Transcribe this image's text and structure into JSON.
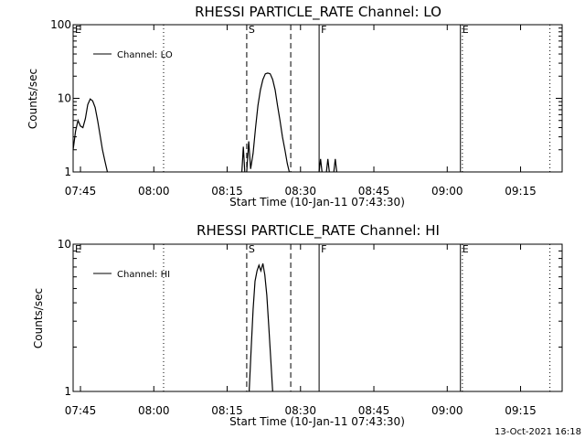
{
  "footer": {
    "timestamp": "13-Oct-2021 16:18"
  },
  "chart_data": [
    {
      "type": "line",
      "title": "RHESSI PARTICLE_RATE Channel: LO",
      "xlabel": "Start Time (10-Jan-11 07:43:30)",
      "ylabel": "Counts/sec",
      "yscale": "log",
      "xlim_minutes_from_start": [
        0,
        100
      ],
      "ylim": [
        1,
        100
      ],
      "x_tick_labels": [
        "07:45",
        "08:00",
        "08:15",
        "08:30",
        "08:45",
        "09:00",
        "09:15"
      ],
      "x_tick_minutes": [
        1.5,
        16.5,
        31.5,
        46.5,
        61.5,
        76.5,
        91.5
      ],
      "y_tick_labels": [
        "1",
        "10",
        "100"
      ],
      "y_tick_values": [
        1,
        10,
        100
      ],
      "legend": {
        "placement": "top-left",
        "entries": [
          "Channel: LO"
        ]
      },
      "markers": [
        {
          "label": "E",
          "minute": 0,
          "style": "dotted"
        },
        {
          "label": "",
          "minute": 18.5,
          "style": "dotted"
        },
        {
          "label": "S",
          "minute": 35.5,
          "style": "dashed"
        },
        {
          "label": "",
          "minute": 44.5,
          "style": "dashed"
        },
        {
          "label": "F",
          "minute": 50.3,
          "style": "solid"
        },
        {
          "label": "E",
          "minute": 79.2,
          "style": "solid"
        },
        {
          "label": "",
          "minute": 79.6,
          "style": "dotted"
        },
        {
          "label": "",
          "minute": 97.5,
          "style": "dotted"
        }
      ],
      "series": [
        {
          "name": "Channel: LO",
          "segments": [
            [
              [
                0,
                2
              ],
              [
                0.5,
                3.6
              ],
              [
                1,
                5
              ],
              [
                1.5,
                4.2
              ],
              [
                2,
                4
              ],
              [
                2.5,
                5.3
              ],
              [
                3,
                8.2
              ],
              [
                3.5,
                9.8
              ],
              [
                4,
                9.2
              ],
              [
                4.5,
                7.5
              ],
              [
                5,
                5
              ],
              [
                5.5,
                3.2
              ],
              [
                6,
                2
              ],
              [
                6.5,
                1.4
              ],
              [
                7,
                1
              ]
            ],
            [
              [
                34.5,
                1
              ],
              [
                34.8,
                2.2
              ],
              [
                35.1,
                1
              ]
            ],
            [
              [
                35.5,
                1
              ],
              [
                35.9,
                2.6
              ],
              [
                36.3,
                1.1
              ],
              [
                36.8,
                1.8
              ],
              [
                37.3,
                4
              ],
              [
                37.8,
                8
              ],
              [
                38.3,
                13
              ],
              [
                38.8,
                18
              ],
              [
                39.3,
                21.5
              ],
              [
                39.8,
                22
              ],
              [
                40.3,
                21.5
              ],
              [
                40.8,
                18
              ],
              [
                41.3,
                13
              ],
              [
                41.8,
                8
              ],
              [
                42.3,
                5
              ],
              [
                42.8,
                3
              ],
              [
                43.3,
                2
              ],
              [
                43.8,
                1.3
              ],
              [
                44.2,
                1
              ]
            ],
            [
              [
                50.3,
                1
              ],
              [
                50.6,
                1.5
              ],
              [
                50.9,
                1
              ]
            ],
            [
              [
                51.8,
                1
              ],
              [
                52.1,
                1.5
              ],
              [
                52.4,
                1
              ]
            ],
            [
              [
                53.3,
                1
              ],
              [
                53.6,
                1.5
              ],
              [
                53.9,
                1
              ]
            ]
          ]
        }
      ]
    },
    {
      "type": "line",
      "title": "RHESSI PARTICLE_RATE Channel: HI",
      "xlabel": "Start Time (10-Jan-11 07:43:30)",
      "ylabel": "Counts/sec",
      "yscale": "log",
      "xlim_minutes_from_start": [
        0,
        100
      ],
      "ylim": [
        1,
        10
      ],
      "x_tick_labels": [
        "07:45",
        "08:00",
        "08:15",
        "08:30",
        "08:45",
        "09:00",
        "09:15"
      ],
      "x_tick_minutes": [
        1.5,
        16.5,
        31.5,
        46.5,
        61.5,
        76.5,
        91.5
      ],
      "y_tick_labels": [
        "1",
        "10"
      ],
      "y_tick_values": [
        1,
        10
      ],
      "legend": {
        "placement": "top-left",
        "entries": [
          "Channel: HI"
        ]
      },
      "markers": [
        {
          "label": "E",
          "minute": 0,
          "style": "dotted"
        },
        {
          "label": "",
          "minute": 18.5,
          "style": "dotted"
        },
        {
          "label": "S",
          "minute": 35.5,
          "style": "dashed"
        },
        {
          "label": "",
          "minute": 44.5,
          "style": "dashed"
        },
        {
          "label": "F",
          "minute": 50.3,
          "style": "solid"
        },
        {
          "label": "E",
          "minute": 79.2,
          "style": "solid"
        },
        {
          "label": "",
          "minute": 79.6,
          "style": "dotted"
        },
        {
          "label": "",
          "minute": 97.5,
          "style": "dotted"
        }
      ],
      "series": [
        {
          "name": "Channel: HI",
          "segments": [
            [
              [
                36.0,
                1
              ],
              [
                36.4,
                1.9
              ],
              [
                36.8,
                3.6
              ],
              [
                37.2,
                5.6
              ],
              [
                37.6,
                6.6
              ],
              [
                38.0,
                7.2
              ],
              [
                38.4,
                6.6
              ],
              [
                38.8,
                7.4
              ],
              [
                39.2,
                6.2
              ],
              [
                39.6,
                4.5
              ],
              [
                40.0,
                2.8
              ],
              [
                40.4,
                1.7
              ],
              [
                40.8,
                1
              ]
            ]
          ]
        }
      ]
    }
  ]
}
